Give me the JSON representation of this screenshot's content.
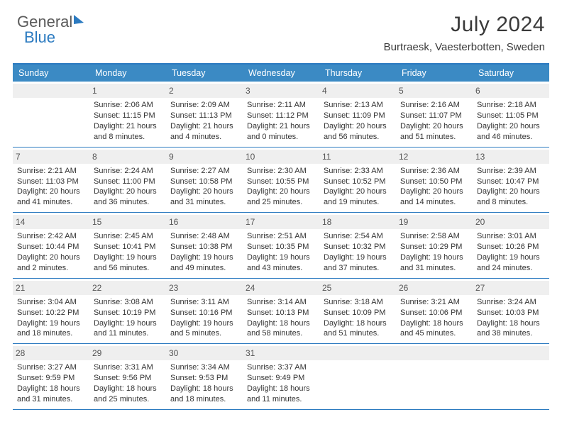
{
  "logo": {
    "text1": "General",
    "text2": "Blue"
  },
  "title": "July 2024",
  "subtitle": "Burtraesk, Vaesterbotten, Sweden",
  "colors": {
    "header_bg": "#3b8ac4",
    "border": "#2b7ac0",
    "daynum_bg": "#efefef",
    "text": "#333333",
    "title_text": "#3a3a3a",
    "logo_gray": "#5a5a5a",
    "logo_blue": "#2b7ac0",
    "background": "#ffffff"
  },
  "typography": {
    "title_fontsize": 30,
    "subtitle_fontsize": 15,
    "dayhead_fontsize": 12.5,
    "daynum_fontsize": 12,
    "cell_fontsize": 11,
    "logo_fontsize": 22
  },
  "day_headers": [
    "Sunday",
    "Monday",
    "Tuesday",
    "Wednesday",
    "Thursday",
    "Friday",
    "Saturday"
  ],
  "weeks": [
    [
      null,
      {
        "n": "1",
        "l1": "Sunrise: 2:06 AM",
        "l2": "Sunset: 11:15 PM",
        "l3": "Daylight: 21 hours",
        "l4": "and 8 minutes."
      },
      {
        "n": "2",
        "l1": "Sunrise: 2:09 AM",
        "l2": "Sunset: 11:13 PM",
        "l3": "Daylight: 21 hours",
        "l4": "and 4 minutes."
      },
      {
        "n": "3",
        "l1": "Sunrise: 2:11 AM",
        "l2": "Sunset: 11:12 PM",
        "l3": "Daylight: 21 hours",
        "l4": "and 0 minutes."
      },
      {
        "n": "4",
        "l1": "Sunrise: 2:13 AM",
        "l2": "Sunset: 11:09 PM",
        "l3": "Daylight: 20 hours",
        "l4": "and 56 minutes."
      },
      {
        "n": "5",
        "l1": "Sunrise: 2:16 AM",
        "l2": "Sunset: 11:07 PM",
        "l3": "Daylight: 20 hours",
        "l4": "and 51 minutes."
      },
      {
        "n": "6",
        "l1": "Sunrise: 2:18 AM",
        "l2": "Sunset: 11:05 PM",
        "l3": "Daylight: 20 hours",
        "l4": "and 46 minutes."
      }
    ],
    [
      {
        "n": "7",
        "l1": "Sunrise: 2:21 AM",
        "l2": "Sunset: 11:03 PM",
        "l3": "Daylight: 20 hours",
        "l4": "and 41 minutes."
      },
      {
        "n": "8",
        "l1": "Sunrise: 2:24 AM",
        "l2": "Sunset: 11:00 PM",
        "l3": "Daylight: 20 hours",
        "l4": "and 36 minutes."
      },
      {
        "n": "9",
        "l1": "Sunrise: 2:27 AM",
        "l2": "Sunset: 10:58 PM",
        "l3": "Daylight: 20 hours",
        "l4": "and 31 minutes."
      },
      {
        "n": "10",
        "l1": "Sunrise: 2:30 AM",
        "l2": "Sunset: 10:55 PM",
        "l3": "Daylight: 20 hours",
        "l4": "and 25 minutes."
      },
      {
        "n": "11",
        "l1": "Sunrise: 2:33 AM",
        "l2": "Sunset: 10:52 PM",
        "l3": "Daylight: 20 hours",
        "l4": "and 19 minutes."
      },
      {
        "n": "12",
        "l1": "Sunrise: 2:36 AM",
        "l2": "Sunset: 10:50 PM",
        "l3": "Daylight: 20 hours",
        "l4": "and 14 minutes."
      },
      {
        "n": "13",
        "l1": "Sunrise: 2:39 AM",
        "l2": "Sunset: 10:47 PM",
        "l3": "Daylight: 20 hours",
        "l4": "and 8 minutes."
      }
    ],
    [
      {
        "n": "14",
        "l1": "Sunrise: 2:42 AM",
        "l2": "Sunset: 10:44 PM",
        "l3": "Daylight: 20 hours",
        "l4": "and 2 minutes."
      },
      {
        "n": "15",
        "l1": "Sunrise: 2:45 AM",
        "l2": "Sunset: 10:41 PM",
        "l3": "Daylight: 19 hours",
        "l4": "and 56 minutes."
      },
      {
        "n": "16",
        "l1": "Sunrise: 2:48 AM",
        "l2": "Sunset: 10:38 PM",
        "l3": "Daylight: 19 hours",
        "l4": "and 49 minutes."
      },
      {
        "n": "17",
        "l1": "Sunrise: 2:51 AM",
        "l2": "Sunset: 10:35 PM",
        "l3": "Daylight: 19 hours",
        "l4": "and 43 minutes."
      },
      {
        "n": "18",
        "l1": "Sunrise: 2:54 AM",
        "l2": "Sunset: 10:32 PM",
        "l3": "Daylight: 19 hours",
        "l4": "and 37 minutes."
      },
      {
        "n": "19",
        "l1": "Sunrise: 2:58 AM",
        "l2": "Sunset: 10:29 PM",
        "l3": "Daylight: 19 hours",
        "l4": "and 31 minutes."
      },
      {
        "n": "20",
        "l1": "Sunrise: 3:01 AM",
        "l2": "Sunset: 10:26 PM",
        "l3": "Daylight: 19 hours",
        "l4": "and 24 minutes."
      }
    ],
    [
      {
        "n": "21",
        "l1": "Sunrise: 3:04 AM",
        "l2": "Sunset: 10:22 PM",
        "l3": "Daylight: 19 hours",
        "l4": "and 18 minutes."
      },
      {
        "n": "22",
        "l1": "Sunrise: 3:08 AM",
        "l2": "Sunset: 10:19 PM",
        "l3": "Daylight: 19 hours",
        "l4": "and 11 minutes."
      },
      {
        "n": "23",
        "l1": "Sunrise: 3:11 AM",
        "l2": "Sunset: 10:16 PM",
        "l3": "Daylight: 19 hours",
        "l4": "and 5 minutes."
      },
      {
        "n": "24",
        "l1": "Sunrise: 3:14 AM",
        "l2": "Sunset: 10:13 PM",
        "l3": "Daylight: 18 hours",
        "l4": "and 58 minutes."
      },
      {
        "n": "25",
        "l1": "Sunrise: 3:18 AM",
        "l2": "Sunset: 10:09 PM",
        "l3": "Daylight: 18 hours",
        "l4": "and 51 minutes."
      },
      {
        "n": "26",
        "l1": "Sunrise: 3:21 AM",
        "l2": "Sunset: 10:06 PM",
        "l3": "Daylight: 18 hours",
        "l4": "and 45 minutes."
      },
      {
        "n": "27",
        "l1": "Sunrise: 3:24 AM",
        "l2": "Sunset: 10:03 PM",
        "l3": "Daylight: 18 hours",
        "l4": "and 38 minutes."
      }
    ],
    [
      {
        "n": "28",
        "l1": "Sunrise: 3:27 AM",
        "l2": "Sunset: 9:59 PM",
        "l3": "Daylight: 18 hours",
        "l4": "and 31 minutes."
      },
      {
        "n": "29",
        "l1": "Sunrise: 3:31 AM",
        "l2": "Sunset: 9:56 PM",
        "l3": "Daylight: 18 hours",
        "l4": "and 25 minutes."
      },
      {
        "n": "30",
        "l1": "Sunrise: 3:34 AM",
        "l2": "Sunset: 9:53 PM",
        "l3": "Daylight: 18 hours",
        "l4": "and 18 minutes."
      },
      {
        "n": "31",
        "l1": "Sunrise: 3:37 AM",
        "l2": "Sunset: 9:49 PM",
        "l3": "Daylight: 18 hours",
        "l4": "and 11 minutes."
      },
      null,
      null,
      null
    ]
  ]
}
